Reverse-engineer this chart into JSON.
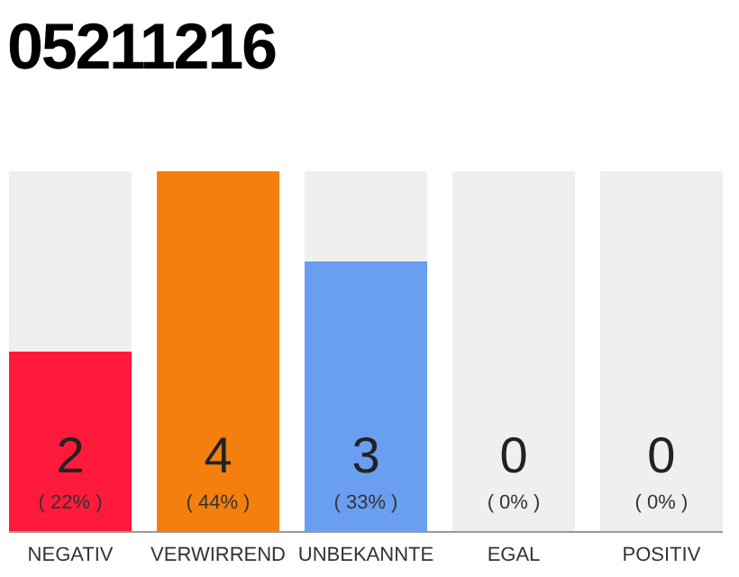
{
  "chart_data": {
    "type": "bar",
    "title": "05211216",
    "categories": [
      "NEGATIV",
      "VERWIRREND",
      "UNBEKANNTE",
      "EGAL",
      "POSITIV"
    ],
    "values": [
      2,
      4,
      3,
      0,
      0
    ],
    "colors": [
      "#ff1a3c",
      "#f57f0e",
      "#6a9ef0",
      "#a0a0a0",
      "#a0a0a0"
    ],
    "ylim": [
      0,
      4
    ],
    "bands": [
      {
        "axis": "x",
        "from": "NEGATIV",
        "to": "NEGATIV",
        "color": "#efefef"
      },
      {
        "axis": "x",
        "from": "UNBEKANNTE",
        "to": "UNBEKANNTE",
        "color": "#efefef"
      },
      {
        "axis": "x",
        "from": "EGAL",
        "to": "EGAL",
        "color": "#efefef"
      },
      {
        "axis": "x",
        "from": "POSITIV",
        "to": "POSITIV",
        "color": "#efefef"
      }
    ],
    "tick_labels": "x",
    "data_labels": true,
    "grid": false,
    "annotations": [
      "( 22% )",
      "( 44% )",
      "( 33% )",
      "( 0% )",
      "( 0% )"
    ]
  }
}
